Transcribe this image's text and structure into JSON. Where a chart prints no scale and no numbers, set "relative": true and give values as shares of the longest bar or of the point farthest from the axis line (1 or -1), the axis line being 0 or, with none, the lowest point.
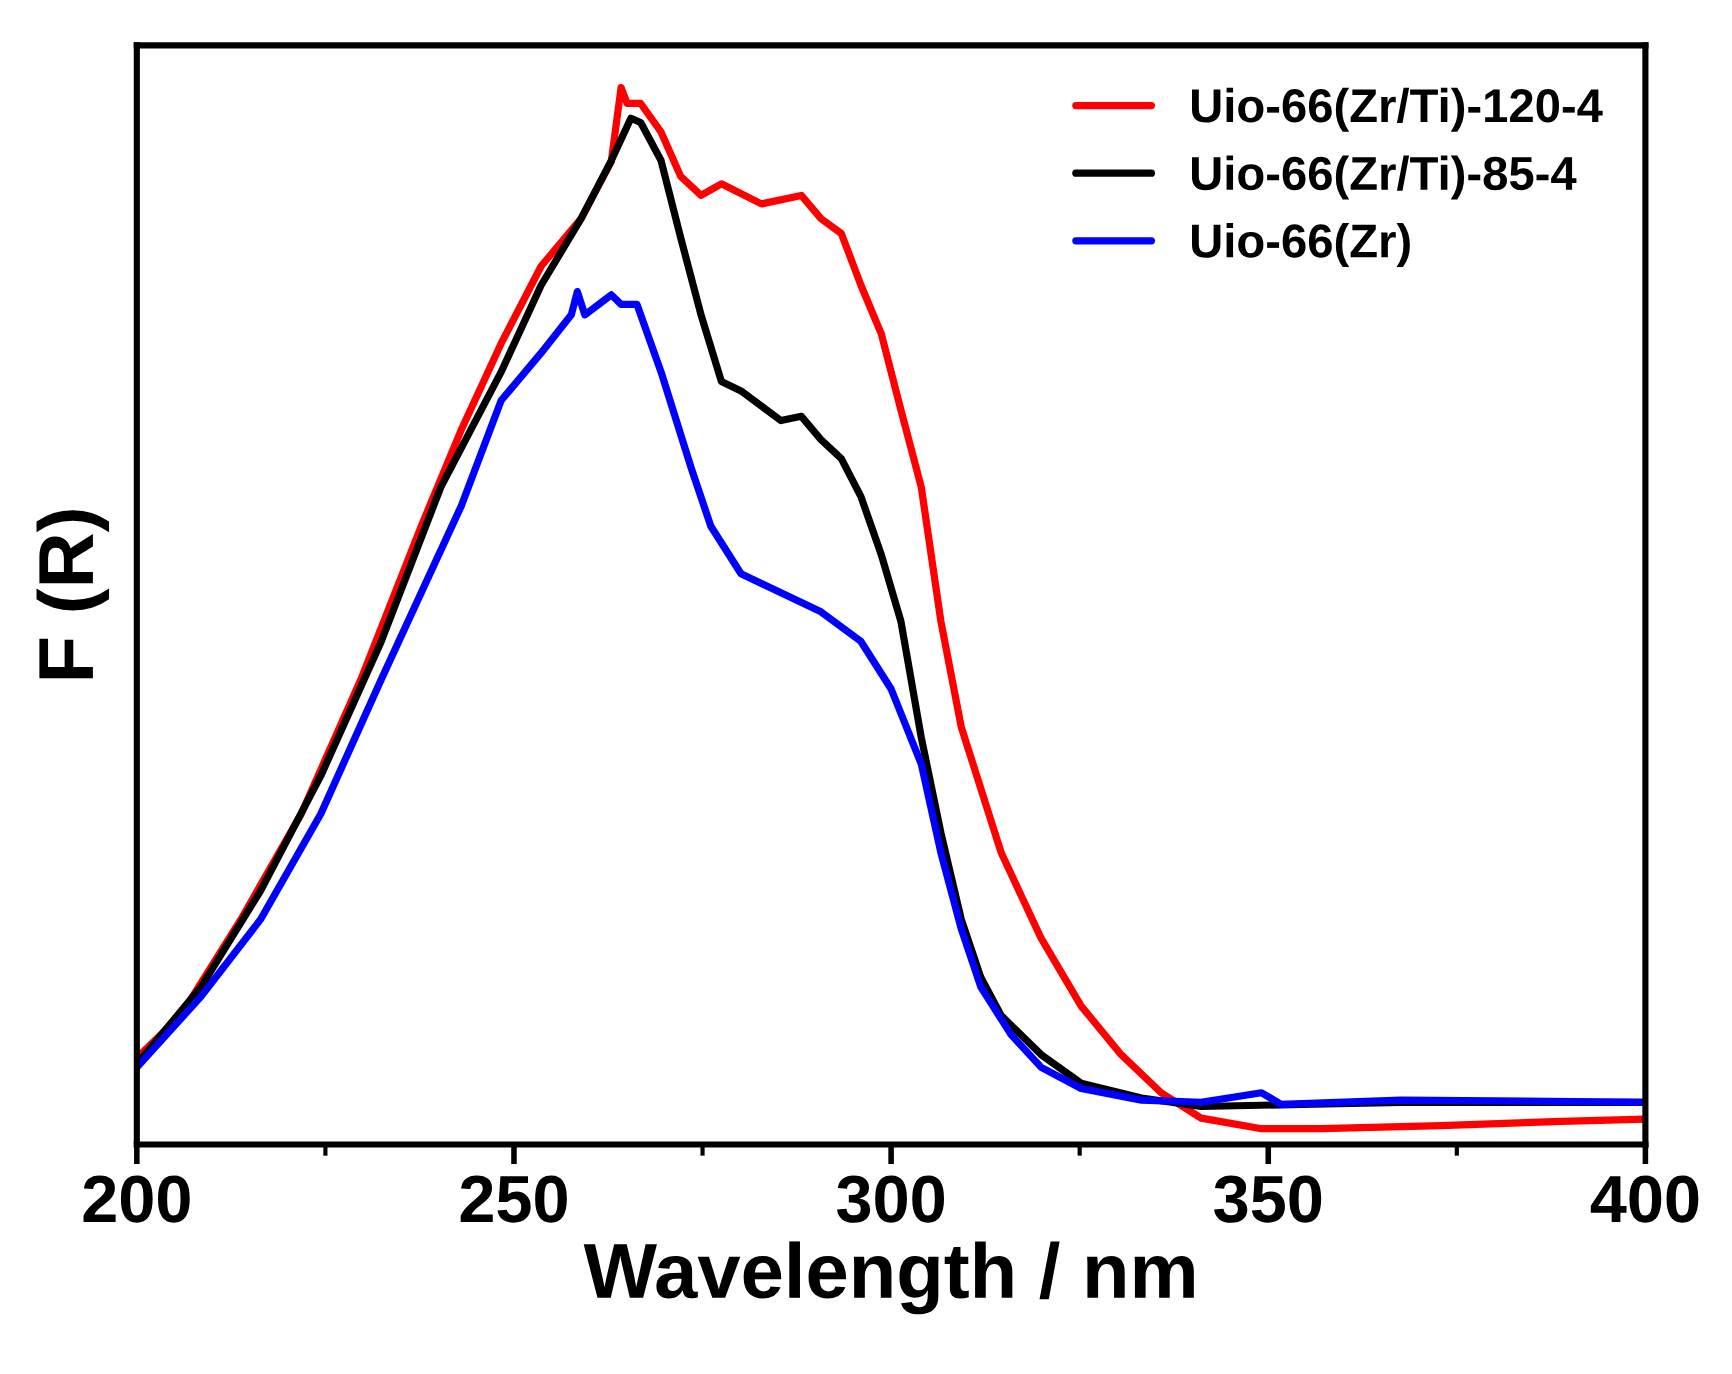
{
  "chart_data": {
    "type": "line",
    "relative": true,
    "xlabel": "Wavelength / nm",
    "ylabel": "F (R)",
    "xlim": [
      200,
      400
    ],
    "xticks": [
      200,
      250,
      300,
      350,
      400
    ],
    "legend": "top right",
    "grid": false,
    "line_style": "solid",
    "marker": "none",
    "series": [
      {
        "name": "Uio-66(Zr/Ti)-120-4",
        "color": "#ff0000",
        "x": [
          200,
          205.8,
          213.8,
          221.8,
          229.7,
          237.7,
          243.0,
          248.3,
          253.6,
          258.9,
          262.9,
          264.2,
          265.0,
          266.8,
          269.5,
          272.1,
          274.8,
          277.5,
          282.8,
          288.1,
          290.7,
          293.4,
          296.0,
          298.7,
          301.3,
          304.0,
          306.6,
          309.3,
          314.6,
          319.9,
          325.2,
          330.5,
          335.8,
          341.1,
          349.1,
          357.0,
          372.9,
          388.9,
          400
        ],
        "values": [
          0.082,
          0.122,
          0.213,
          0.313,
          0.44,
          0.585,
          0.676,
          0.758,
          0.831,
          0.876,
          0.93,
          1.0,
          0.985,
          0.985,
          0.958,
          0.916,
          0.898,
          0.909,
          0.89,
          0.898,
          0.876,
          0.862,
          0.813,
          0.767,
          0.695,
          0.622,
          0.495,
          0.395,
          0.276,
          0.195,
          0.131,
          0.085,
          0.049,
          0.025,
          0.015,
          0.015,
          0.018,
          0.022,
          0.024
        ]
      },
      {
        "name": "Uio-66(Zr/Ti)-85-4",
        "color": "#000000",
        "x": [
          200,
          208.5,
          216.4,
          224.4,
          232.4,
          240.3,
          248.3,
          253.6,
          258.9,
          262.9,
          265.5,
          266.8,
          269.5,
          272.1,
          274.8,
          277.5,
          280.1,
          285.4,
          288.1,
          290.7,
          293.4,
          296.0,
          298.7,
          301.3,
          304.0,
          306.6,
          309.3,
          311.9,
          314.6,
          319.9,
          325.2,
          333.2,
          341.1,
          354.4,
          367.6,
          400
        ],
        "values": [
          0.076,
          0.149,
          0.24,
          0.349,
          0.476,
          0.622,
          0.731,
          0.813,
          0.876,
          0.931,
          0.971,
          0.967,
          0.931,
          0.858,
          0.785,
          0.722,
          0.713,
          0.685,
          0.689,
          0.667,
          0.649,
          0.613,
          0.558,
          0.495,
          0.385,
          0.295,
          0.213,
          0.158,
          0.122,
          0.085,
          0.058,
          0.044,
          0.036,
          0.038,
          0.04,
          0.04
        ]
      },
      {
        "name": "Uio-66(Zr)",
        "color": "#0000ff",
        "x": [
          200,
          208.5,
          216.4,
          224.4,
          232.4,
          237.7,
          243.0,
          248.3,
          253.6,
          257.6,
          258.4,
          259.4,
          262.9,
          264.2,
          266.3,
          269.5,
          273.5,
          276.1,
          280.1,
          285.4,
          290.7,
          296.0,
          300.0,
          304.0,
          306.6,
          309.3,
          311.9,
          315.9,
          319.9,
          325.2,
          333.2,
          341.1,
          349.1,
          351.7,
          367.6,
          400
        ],
        "values": [
          0.073,
          0.14,
          0.213,
          0.313,
          0.44,
          0.522,
          0.604,
          0.704,
          0.749,
          0.785,
          0.807,
          0.785,
          0.804,
          0.795,
          0.795,
          0.731,
          0.64,
          0.585,
          0.54,
          0.522,
          0.504,
          0.476,
          0.431,
          0.36,
          0.276,
          0.204,
          0.149,
          0.104,
          0.073,
          0.053,
          0.042,
          0.04,
          0.049,
          0.038,
          0.042,
          0.04
        ]
      }
    ]
  }
}
